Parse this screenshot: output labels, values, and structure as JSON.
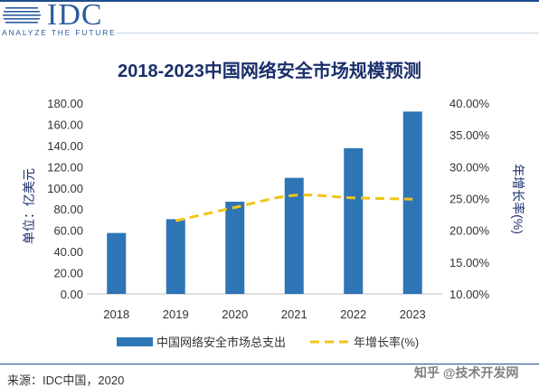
{
  "header": {
    "logo_text": "IDC",
    "logo_tagline": "ANALYZE THE FUTURE"
  },
  "footer": {
    "source": "来源：IDC中国，2020",
    "watermark": "知乎 @技术开发网"
  },
  "colors": {
    "bar": "#2e75b6",
    "line": "#f0c419",
    "title": "#1a2f6b",
    "brand": "#2b5aa0"
  },
  "chart_data": {
    "type": "bar",
    "title": "2018-2023中国网络安全市场规模预测",
    "categories": [
      "2018",
      "2019",
      "2020",
      "2021",
      "2022",
      "2023"
    ],
    "ylabel": "单位：亿美元",
    "y2label": "年增长率(%)",
    "ylim": [
      0,
      180
    ],
    "y_ticks": [
      "0.00",
      "20.00",
      "40.00",
      "60.00",
      "80.00",
      "100.00",
      "120.00",
      "140.00",
      "160.00",
      "180.00"
    ],
    "y2lim": [
      10,
      40
    ],
    "y2_ticks": [
      "10.00%",
      "15.00%",
      "20.00%",
      "25.00%",
      "30.00%",
      "35.00%",
      "40.00%"
    ],
    "series": [
      {
        "name": "中国网络安全市场总支出",
        "type": "bar",
        "axis": "left",
        "values": [
          57.5,
          70.5,
          87,
          109.5,
          137.5,
          172
        ]
      },
      {
        "name": "年增长率(%)",
        "type": "line",
        "axis": "right",
        "style": "dashed",
        "values": [
          null,
          21.5,
          23.6,
          25.5,
          25.1,
          24.9
        ]
      }
    ],
    "grid": false,
    "legend_position": "bottom"
  }
}
